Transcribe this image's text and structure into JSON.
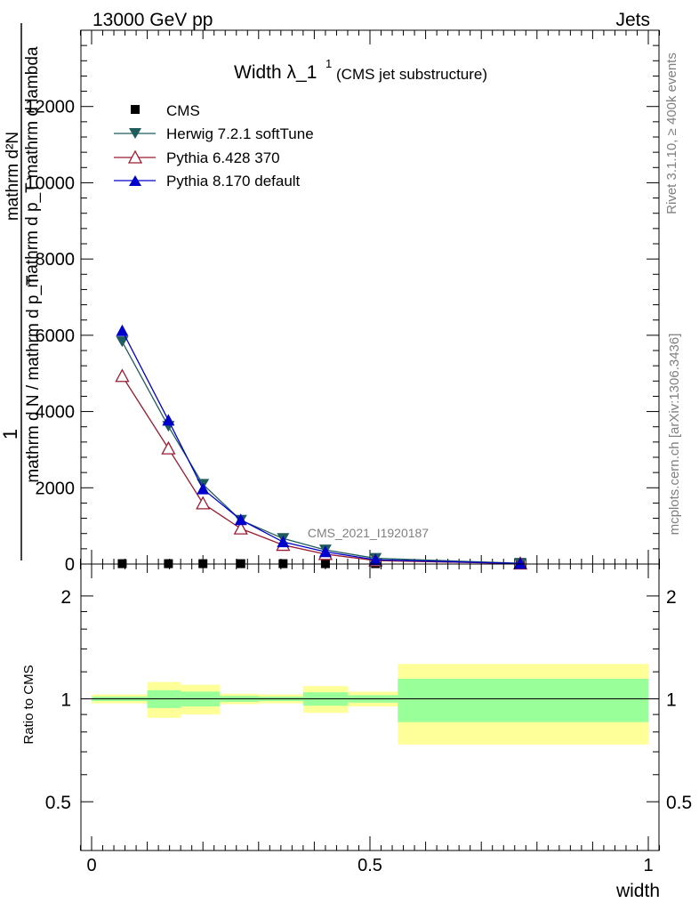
{
  "header": {
    "left": "13000 GeV pp",
    "right": "Jets"
  },
  "side_labels": {
    "rivet": "Rivet 3.1.10, ≥ 400k events",
    "mcplots": "mcplots.cern.ch [arXiv:1306.3436]"
  },
  "chart_data": [
    {
      "type": "line",
      "title_main": "Width λ_1",
      "title_sup": "1",
      "title_sub": "(CMS jet substructure)",
      "analysis_id": "CMS_2021_I1920187",
      "ylabel_line1": "mathrm d²N",
      "ylabel_line2": "mathrm d p_T mathrm d lambda",
      "ylabel_frac_num": "1",
      "ylabel_frac_den": "mathrm d N / mathrm d p_T",
      "ylim": [
        0,
        14000
      ],
      "y_ticks": [
        0,
        2000,
        4000,
        6000,
        8000,
        10000,
        12000
      ],
      "y_tick_labels": [
        "0",
        "2000",
        "4000",
        "6000",
        "8000",
        "10000",
        "12000"
      ],
      "xlim": [
        -0.02,
        1.02
      ],
      "legend_position": "top-left",
      "bin_edges": [
        0.0,
        0.1,
        0.16,
        0.23,
        0.3,
        0.38,
        0.46,
        0.55,
        1.0
      ],
      "x": [
        0.055,
        0.138,
        0.2,
        0.268,
        0.344,
        0.42,
        0.51,
        0.77
      ],
      "series": [
        {
          "name": "CMS",
          "color": "#000000",
          "marker": "square",
          "values": [
            10,
            10,
            10,
            10,
            10,
            10,
            10,
            10
          ]
        },
        {
          "name": "Herwig 7.2.1 softTune",
          "color": "#1f5c5c",
          "marker": "triangle-down",
          "values": [
            5830,
            3610,
            2090,
            1150,
            670,
            370,
            150,
            20
          ]
        },
        {
          "name": "Pythia 6.428 370",
          "color": "#9b1b30",
          "marker": "triangle-up-open",
          "values": [
            4930,
            3030,
            1590,
            930,
            500,
            260,
            90,
            12
          ]
        },
        {
          "name": "Pythia 8.170 default",
          "color": "#0000cc",
          "marker": "triangle-up",
          "values": [
            6120,
            3770,
            1970,
            1160,
            580,
            320,
            110,
            15
          ]
        }
      ]
    },
    {
      "type": "bar",
      "ylabel": "Ratio to CMS",
      "xlabel": "width",
      "ylim": [
        0.36,
        2.48
      ],
      "y_ticks": [
        0.5,
        1,
        2
      ],
      "y_tick_labels": [
        "0.5",
        "1",
        "2"
      ],
      "x_ticks": [
        0,
        0.5,
        1
      ],
      "x_tick_labels": [
        "0",
        "0.5",
        "1"
      ],
      "band_colors": {
        "inner": "#99ff99",
        "outer": "#ffff99"
      },
      "bin_edges": [
        0.0,
        0.1,
        0.16,
        0.23,
        0.3,
        0.38,
        0.46,
        0.55,
        1.0
      ],
      "inner_band": {
        "low": [
          0.985,
          0.94,
          0.95,
          0.98,
          0.985,
          0.955,
          0.975,
          0.855
        ],
        "high": [
          1.015,
          1.06,
          1.05,
          1.02,
          1.015,
          1.045,
          1.025,
          1.145
        ]
      },
      "outer_band": {
        "low": [
          0.97,
          0.88,
          0.9,
          0.965,
          0.97,
          0.91,
          0.95,
          0.735
        ],
        "high": [
          1.03,
          1.12,
          1.1,
          1.035,
          1.03,
          1.09,
          1.05,
          1.265
        ]
      },
      "ratio_line": 1
    }
  ]
}
